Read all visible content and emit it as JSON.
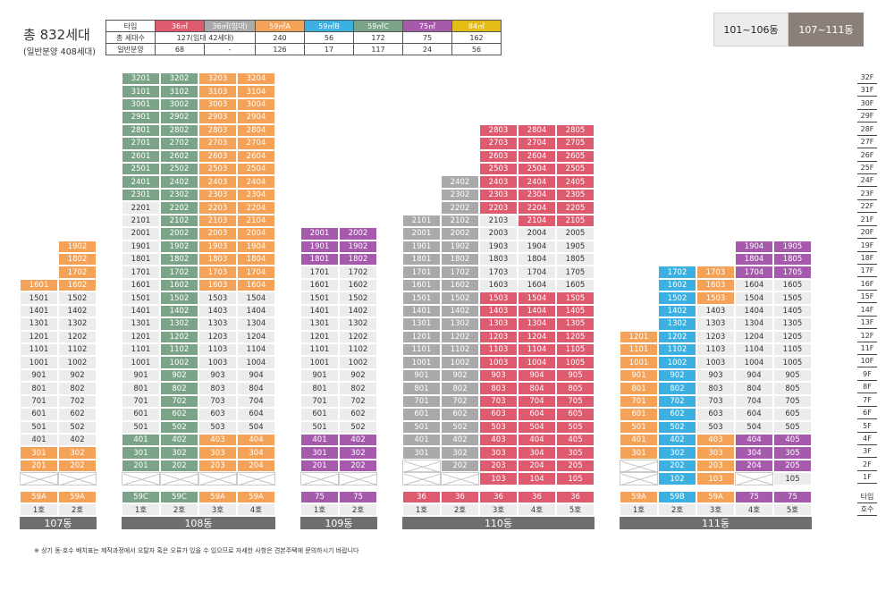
{
  "summary": {
    "title": "총 832세대",
    "subtitle": "(일반분양 408세대)"
  },
  "type_table": {
    "header_label": "타입",
    "types": [
      {
        "label": "36㎡",
        "color": "#de5a6e"
      },
      {
        "label": "36㎡(임대)",
        "color": "#a9a9a9"
      },
      {
        "label": "59㎡A",
        "color": "#f4a257"
      },
      {
        "label": "59㎡B",
        "color": "#3cb0e0"
      },
      {
        "label": "59㎡C",
        "color": "#7aa387"
      },
      {
        "label": "75㎡",
        "color": "#a55aac"
      },
      {
        "label": "84㎡",
        "color": "#e3bd16"
      }
    ],
    "rows": [
      {
        "label": "총 세대수",
        "values": [
          "127(임대 42세대)",
          "240",
          "56",
          "172",
          "75",
          "162"
        ]
      },
      {
        "label": "일반분양",
        "values": [
          "68",
          "-",
          "126",
          "17",
          "117",
          "24",
          "56"
        ]
      }
    ]
  },
  "tabs": [
    {
      "label": "101~106동",
      "active": false
    },
    {
      "label": "107~111동",
      "active": true
    }
  ],
  "floors": [
    "32F",
    "31F",
    "30F",
    "29F",
    "28F",
    "27F",
    "26F",
    "25F",
    "24F",
    "23F",
    "22F",
    "21F",
    "20F",
    "19F",
    "18F",
    "17F",
    "16F",
    "15F",
    "14F",
    "13F",
    "12F",
    "11F",
    "10F",
    "9F",
    "8F",
    "7F",
    "6F",
    "5F",
    "4F",
    "3F",
    "2F",
    "1F"
  ],
  "footer_labels": {
    "type": "타입",
    "unit": "호수"
  },
  "footnote": "※ 상기 동·호수 배치표는 제작과정에서 오탈자 혹은 오류가 있을 수 있으므로 자세한 사항은 견본주택에 문의하시기 바랍니다",
  "colors": {
    "g": "#ececec",
    "green": "#7aa387",
    "orange": "#f4a257",
    "purple": "#a55aac",
    "red": "#de5a6e",
    "blue": "#3cb0e0",
    "gray": "#a9a9a9"
  },
  "buildings": [
    {
      "name": "107동",
      "columns": [
        {
          "ho": "1호",
          "type": "59A",
          "type_color": "orange",
          "floors": {
            "16": "orange",
            "15": "g",
            "14": "g",
            "13": "g",
            "12": "g",
            "11": "g",
            "10": "g",
            "9": "g",
            "8": "g",
            "7": "g",
            "6": "g",
            "5": "g",
            "4": "g",
            "3": "orange",
            "2": "orange",
            "1": "empty"
          }
        },
        {
          "ho": "2호",
          "type": "59A",
          "type_color": "orange",
          "floors": {
            "19": "orange",
            "18": "orange",
            "17": "orange",
            "16": "orange",
            "15": "g",
            "14": "g",
            "13": "g",
            "12": "g",
            "11": "g",
            "10": "g",
            "9": "g",
            "8": "g",
            "7": "g",
            "6": "g",
            "5": "g",
            "4": "g",
            "3": "orange",
            "2": "orange",
            "1": "empty"
          }
        }
      ]
    },
    {
      "name": "108동",
      "columns": [
        {
          "ho": "1호",
          "type": "59C",
          "type_color": "green",
          "floors": {
            "32": "green",
            "31": "green",
            "30": "green",
            "29": "green",
            "28": "green",
            "27": "green",
            "26": "green",
            "25": "green",
            "24": "green",
            "23": "green",
            "22": "g",
            "21": "g",
            "20": "g",
            "19": "g",
            "18": "g",
            "17": "g",
            "16": "g",
            "15": "g",
            "14": "g",
            "13": "g",
            "12": "g",
            "11": "g",
            "10": "g",
            "9": "g",
            "8": "g",
            "7": "g",
            "6": "g",
            "5": "g",
            "4": "green",
            "3": "green",
            "2": "green",
            "1": "empty"
          }
        },
        {
          "ho": "2호",
          "type": "59C",
          "type_color": "green",
          "floors": {
            "32": "green",
            "31": "green",
            "30": "green",
            "29": "green",
            "28": "green",
            "27": "green",
            "26": "green",
            "25": "green",
            "24": "green",
            "23": "green",
            "22": "green",
            "21": "green",
            "20": "green",
            "19": "green",
            "18": "green",
            "17": "green",
            "16": "green",
            "15": "green",
            "14": "green",
            "13": "green",
            "12": "green",
            "11": "green",
            "10": "green",
            "9": "green",
            "8": "green",
            "7": "green",
            "6": "green",
            "5": "green",
            "4": "green",
            "3": "green",
            "2": "green",
            "1": "empty"
          }
        },
        {
          "ho": "3호",
          "type": "59A",
          "type_color": "orange",
          "floors": {
            "32": "orange",
            "31": "orange",
            "30": "orange",
            "29": "orange",
            "28": "orange",
            "27": "orange",
            "26": "orange",
            "25": "orange",
            "24": "orange",
            "23": "orange",
            "22": "orange",
            "21": "orange",
            "20": "orange",
            "19": "orange",
            "18": "orange",
            "17": "orange",
            "16": "orange",
            "15": "g",
            "14": "g",
            "13": "g",
            "12": "g",
            "11": "g",
            "10": "g",
            "9": "g",
            "8": "g",
            "7": "g",
            "6": "g",
            "5": "g",
            "4": "orange",
            "3": "orange",
            "2": "orange",
            "1": "empty"
          }
        },
        {
          "ho": "4호",
          "type": "59A",
          "type_color": "orange",
          "floors": {
            "32": "orange",
            "31": "orange",
            "30": "orange",
            "29": "orange",
            "28": "orange",
            "27": "orange",
            "26": "orange",
            "25": "orange",
            "24": "orange",
            "23": "orange",
            "22": "orange",
            "21": "orange",
            "20": "orange",
            "19": "orange",
            "18": "orange",
            "17": "orange",
            "16": "orange",
            "15": "g",
            "14": "g",
            "13": "g",
            "12": "g",
            "11": "g",
            "10": "g",
            "9": "g",
            "8": "g",
            "7": "g",
            "6": "g",
            "5": "g",
            "4": "orange",
            "3": "orange",
            "2": "orange",
            "1": "empty"
          }
        }
      ]
    },
    {
      "name": "109동",
      "columns": [
        {
          "ho": "1호",
          "type": "75",
          "type_color": "purple",
          "floors": {
            "20": "purple",
            "19": "purple",
            "18": "purple",
            "17": "g",
            "16": "g",
            "15": "g",
            "14": "g",
            "13": "g",
            "12": "g",
            "11": "g",
            "10": "g",
            "9": "g",
            "8": "g",
            "7": "g",
            "6": "g",
            "5": "g",
            "4": "purple",
            "3": "purple",
            "2": "purple",
            "1": "empty"
          }
        },
        {
          "ho": "2호",
          "type": "75",
          "type_color": "purple",
          "floors": {
            "20": "purple",
            "19": "purple",
            "18": "purple",
            "17": "g",
            "16": "g",
            "15": "g",
            "14": "g",
            "13": "g",
            "12": "g",
            "11": "g",
            "10": "g",
            "9": "g",
            "8": "g",
            "7": "g",
            "6": "g",
            "5": "g",
            "4": "purple",
            "3": "purple",
            "2": "purple",
            "1": "empty"
          }
        }
      ]
    },
    {
      "name": "110동",
      "columns": [
        {
          "ho": "1호",
          "type": "36",
          "type_color": "red",
          "floors": {
            "21": "gray",
            "20": "gray",
            "19": "gray",
            "18": "gray",
            "17": "gray",
            "16": "gray",
            "15": "gray",
            "14": "gray",
            "13": "gray",
            "12": "gray",
            "11": "gray",
            "10": "gray",
            "9": "gray",
            "8": "gray",
            "7": "gray",
            "6": "gray",
            "5": "gray",
            "4": "gray",
            "3": "gray",
            "2": "empty",
            "1": "empty"
          }
        },
        {
          "ho": "2호",
          "type": "36",
          "type_color": "red",
          "floors": {
            "24": "gray",
            "23": "gray",
            "22": "gray",
            "21": "gray",
            "20": "gray",
            "19": "gray",
            "18": "gray",
            "17": "gray",
            "16": "gray",
            "15": "gray",
            "14": "gray",
            "13": "gray",
            "12": "gray",
            "11": "gray",
            "10": "gray",
            "9": "gray",
            "8": "gray",
            "7": "gray",
            "6": "gray",
            "5": "gray",
            "4": "gray",
            "3": "gray",
            "2": "gray",
            "1": "empty"
          }
        },
        {
          "ho": "3호",
          "type": "36",
          "type_color": "red",
          "floors": {
            "28": "red",
            "27": "red",
            "26": "red",
            "25": "red",
            "24": "red",
            "23": "red",
            "22": "red",
            "21": "g",
            "20": "g",
            "19": "g",
            "18": "g",
            "17": "g",
            "16": "g",
            "15": "red",
            "14": "red",
            "13": "red",
            "12": "red",
            "11": "red",
            "10": "red",
            "9": "red",
            "8": "red",
            "7": "red",
            "6": "red",
            "5": "red",
            "4": "red",
            "3": "red",
            "2": "red",
            "1": "red"
          }
        },
        {
          "ho": "4호",
          "type": "36",
          "type_color": "red",
          "floors": {
            "28": "red",
            "27": "red",
            "26": "red",
            "25": "red",
            "24": "red",
            "23": "red",
            "22": "red",
            "21": "red",
            "20": "g",
            "19": "g",
            "18": "g",
            "17": "g",
            "16": "g",
            "15": "red",
            "14": "red",
            "13": "red",
            "12": "red",
            "11": "red",
            "10": "red",
            "9": "red",
            "8": "red",
            "7": "red",
            "6": "red",
            "5": "red",
            "4": "red",
            "3": "red",
            "2": "red",
            "1": "red"
          }
        },
        {
          "ho": "5호",
          "type": "36",
          "type_color": "red",
          "floors": {
            "28": "red",
            "27": "red",
            "26": "red",
            "25": "red",
            "24": "red",
            "23": "red",
            "22": "red",
            "21": "red",
            "20": "g",
            "19": "g",
            "18": "g",
            "17": "g",
            "16": "g",
            "15": "red",
            "14": "red",
            "13": "red",
            "12": "red",
            "11": "red",
            "10": "red",
            "9": "red",
            "8": "red",
            "7": "red",
            "6": "red",
            "5": "red",
            "4": "red",
            "3": "red",
            "2": "red",
            "1": "red"
          }
        }
      ]
    },
    {
      "name": "111동",
      "columns": [
        {
          "ho": "1호",
          "type": "59A",
          "type_color": "orange",
          "floors": {
            "12": "orange",
            "11": "orange",
            "10": "orange",
            "9": "orange",
            "8": "orange",
            "7": "orange",
            "6": "orange",
            "5": "orange",
            "4": "orange",
            "3": "orange",
            "2": "empty",
            "1": "empty"
          }
        },
        {
          "ho": "2호",
          "type": "59B",
          "type_color": "blue",
          "floors": {
            "17": "blue",
            "16": "blue",
            "15": "blue",
            "14": "blue",
            "13": "blue",
            "12": "blue",
            "11": "blue",
            "10": "blue",
            "9": "blue",
            "8": "blue",
            "7": "blue",
            "6": "blue",
            "5": "blue",
            "4": "blue",
            "3": "blue",
            "2": "blue",
            "1": "blue"
          }
        },
        {
          "ho": "3호",
          "type": "59A",
          "type_color": "orange",
          "floors": {
            "17": "orange",
            "16": "orange",
            "15": "orange",
            "14": "g",
            "13": "g",
            "12": "g",
            "11": "g",
            "10": "g",
            "9": "g",
            "8": "g",
            "7": "g",
            "6": "g",
            "5": "g",
            "4": "orange",
            "3": "orange",
            "2": "orange",
            "1": "orange"
          }
        },
        {
          "ho": "4호",
          "type": "75",
          "type_color": "purple",
          "floors": {
            "19": "purple",
            "18": "purple",
            "17": "purple",
            "16": "g",
            "15": "g",
            "14": "g",
            "13": "g",
            "12": "g",
            "11": "g",
            "10": "g",
            "9": "g",
            "8": "g",
            "7": "g",
            "6": "g",
            "5": "g",
            "4": "purple",
            "3": "purple",
            "2": "purple",
            "1": "empty"
          }
        },
        {
          "ho": "5호",
          "type": "75",
          "type_color": "purple",
          "floors": {
            "19": "purple",
            "18": "purple",
            "17": "purple",
            "16": "g",
            "15": "g",
            "14": "g",
            "13": "g",
            "12": "g",
            "11": "g",
            "10": "g",
            "9": "g",
            "8": "g",
            "7": "g",
            "6": "g",
            "5": "g",
            "4": "purple",
            "3": "purple",
            "2": "purple",
            "1": "g"
          }
        }
      ]
    }
  ]
}
